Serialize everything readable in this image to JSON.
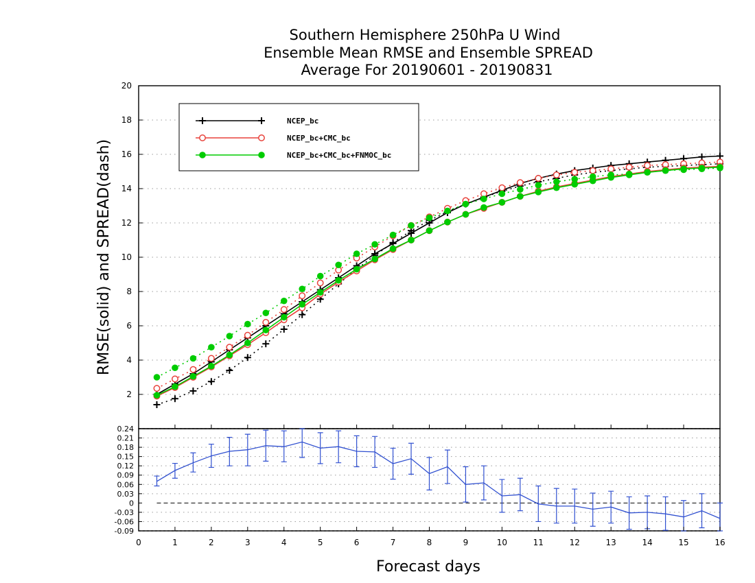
{
  "chart_data": [
    {
      "type": "line",
      "title": [
        "Southern Hemisphere 250hPa U Wind",
        "Ensemble Mean RMSE and Ensemble SPREAD",
        "Average For 20190601 - 20190831"
      ],
      "xlabel": "Forecast days",
      "ylabel": "RMSE(solid) and SPREAD(dash)",
      "xlim": [
        0,
        16
      ],
      "ylim": [
        0,
        20
      ],
      "xticks": [
        "0",
        "1",
        "2",
        "3",
        "4",
        "5",
        "6",
        "7",
        "8",
        "9",
        "10",
        "11",
        "12",
        "13",
        "14",
        "15",
        "16"
      ],
      "yticks": [
        "2",
        "4",
        "6",
        "8",
        "10",
        "12",
        "14",
        "16",
        "18",
        "20"
      ],
      "grid": true,
      "legend_position": "top-left",
      "x": [
        0.5,
        1,
        1.5,
        2,
        2.5,
        3,
        3.5,
        4,
        4.5,
        5,
        5.5,
        6,
        6.5,
        7,
        7.5,
        8,
        8.5,
        9,
        9.5,
        10,
        10.5,
        11,
        11.5,
        12,
        12.5,
        13,
        13.5,
        14,
        14.5,
        15,
        15.5,
        16
      ],
      "series": [
        {
          "name": "NCEP_bc",
          "color": "#000000",
          "marker": "plus",
          "rmse": [
            2.0,
            2.6,
            3.2,
            3.9,
            4.6,
            5.3,
            6.0,
            6.7,
            7.4,
            8.1,
            8.8,
            9.5,
            10.2,
            10.8,
            11.4,
            12.0,
            12.6,
            13.1,
            13.5,
            13.9,
            14.3,
            14.6,
            14.85,
            15.05,
            15.2,
            15.35,
            15.45,
            15.55,
            15.65,
            15.75,
            15.85,
            15.9
          ],
          "spread": [
            1.4,
            1.75,
            2.2,
            2.75,
            3.4,
            4.15,
            4.95,
            5.8,
            6.65,
            7.55,
            8.45,
            9.3,
            10.1,
            10.85,
            11.55,
            12.15,
            12.65,
            13.1,
            13.5,
            13.85,
            14.15,
            14.4,
            14.6,
            14.8,
            14.95,
            15.05,
            15.15,
            15.25,
            15.3,
            15.35,
            15.4,
            15.45
          ]
        },
        {
          "name": "NCEP_bc+CMC_bc",
          "color": "#e8413a",
          "marker": "open-circle",
          "rmse": [
            1.9,
            2.4,
            3.0,
            3.6,
            4.25,
            4.9,
            5.6,
            6.35,
            7.05,
            7.85,
            8.55,
            9.2,
            9.85,
            10.45,
            11.0,
            11.55,
            12.05,
            12.5,
            12.85,
            13.2,
            13.55,
            13.85,
            14.1,
            14.3,
            14.5,
            14.7,
            14.85,
            15.0,
            15.1,
            15.2,
            15.25,
            15.3
          ],
          "spread": [
            2.35,
            2.9,
            3.45,
            4.1,
            4.75,
            5.45,
            6.2,
            6.95,
            7.75,
            8.5,
            9.25,
            9.95,
            10.6,
            11.25,
            11.85,
            12.35,
            12.85,
            13.3,
            13.7,
            14.05,
            14.35,
            14.6,
            14.8,
            14.95,
            15.05,
            15.15,
            15.25,
            15.35,
            15.4,
            15.45,
            15.5,
            15.55
          ]
        },
        {
          "name": "NCEP_bc+CMC_bc+FNMOC_bc",
          "color": "#00cc00",
          "marker": "filled-circle",
          "rmse": [
            1.95,
            2.45,
            3.05,
            3.65,
            4.3,
            5.0,
            5.75,
            6.5,
            7.25,
            7.95,
            8.65,
            9.3,
            9.9,
            10.5,
            11.0,
            11.55,
            12.05,
            12.5,
            12.9,
            13.2,
            13.55,
            13.8,
            14.05,
            14.25,
            14.45,
            14.65,
            14.8,
            14.95,
            15.05,
            15.15,
            15.2,
            15.25
          ],
          "spread": [
            3.0,
            3.55,
            4.1,
            4.75,
            5.4,
            6.1,
            6.75,
            7.45,
            8.15,
            8.9,
            9.55,
            10.2,
            10.75,
            11.3,
            11.85,
            12.3,
            12.7,
            13.1,
            13.4,
            13.7,
            13.95,
            14.2,
            14.4,
            14.55,
            14.7,
            14.8,
            14.85,
            14.95,
            15.05,
            15.1,
            15.15,
            15.2
          ]
        }
      ]
    },
    {
      "type": "line",
      "xlim": [
        0,
        16
      ],
      "ylim": [
        -0.09,
        0.24
      ],
      "yticks": [
        "0.24",
        "0.21",
        "0.18",
        "0.15",
        "0.12",
        "0.09",
        "0.06",
        "0.03",
        "0",
        "-0.03",
        "-0.06",
        "-0.09"
      ],
      "grid": true,
      "zero_line": true,
      "series": [
        {
          "color": "#3050d0",
          "marker": "error-bar",
          "x": [
            0.5,
            1,
            1.5,
            2,
            2.5,
            3,
            3.5,
            4,
            4.5,
            5,
            5.5,
            6,
            6.5,
            7,
            7.5,
            8,
            8.5,
            9,
            9.5,
            10,
            10.5,
            11,
            11.5,
            12,
            12.5,
            13,
            13.5,
            14,
            14.5,
            15,
            15.5,
            16
          ],
          "values": [
            0.07,
            0.105,
            0.13,
            0.152,
            0.167,
            0.172,
            0.185,
            0.182,
            0.197,
            0.177,
            0.182,
            0.167,
            0.165,
            0.127,
            0.143,
            0.095,
            0.117,
            0.06,
            0.065,
            0.023,
            0.027,
            -0.003,
            -0.01,
            -0.01,
            -0.02,
            -0.013,
            -0.032,
            -0.03,
            -0.035,
            -0.045,
            -0.025,
            -0.05
          ],
          "err_low": [
            0.055,
            0.08,
            0.1,
            0.115,
            0.12,
            0.12,
            0.135,
            0.133,
            0.147,
            0.127,
            0.13,
            0.117,
            0.115,
            0.077,
            0.093,
            0.042,
            0.063,
            0.003,
            0.01,
            -0.03,
            -0.025,
            -0.06,
            -0.065,
            -0.065,
            -0.075,
            -0.065,
            -0.085,
            -0.083,
            -0.088,
            -0.097,
            -0.08,
            -0.1
          ],
          "err_high": [
            0.087,
            0.128,
            0.162,
            0.19,
            0.212,
            0.222,
            0.235,
            0.233,
            0.245,
            0.227,
            0.233,
            0.217,
            0.215,
            0.177,
            0.193,
            0.147,
            0.171,
            0.117,
            0.12,
            0.076,
            0.08,
            0.055,
            0.047,
            0.045,
            0.032,
            0.038,
            0.02,
            0.023,
            0.02,
            0.008,
            0.03,
            0.0
          ]
        }
      ]
    }
  ]
}
